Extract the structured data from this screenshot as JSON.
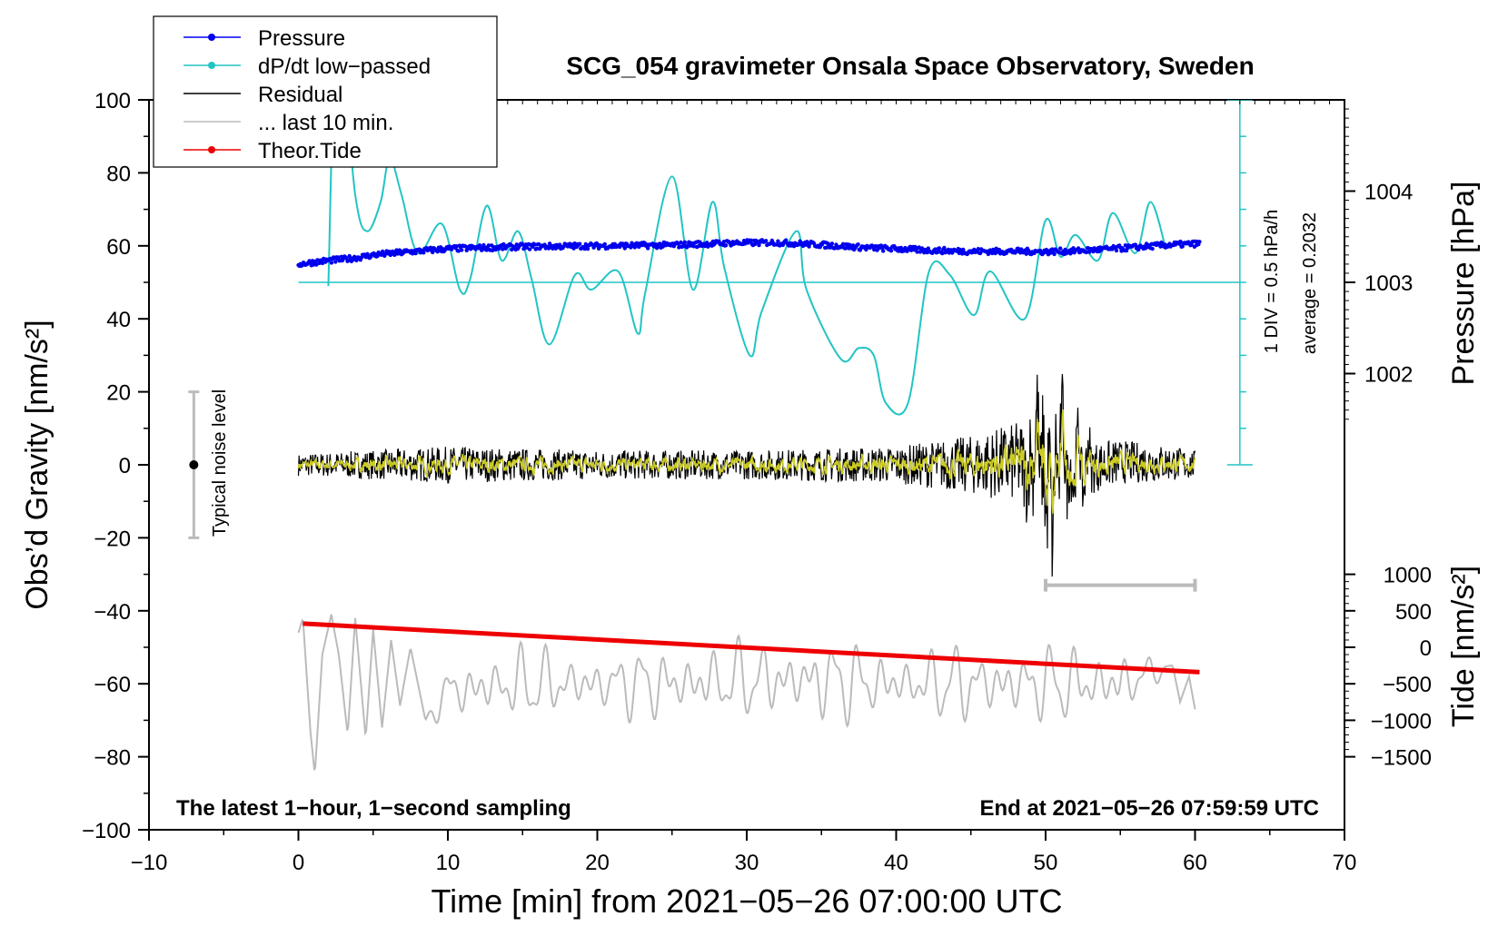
{
  "chart_data": {
    "type": "line",
    "title": "SCG_054 gravimeter Onsala Space Observatory, Sweden",
    "xlabel": "Time [min] from 2021−05−26 07:00:00 UTC",
    "ylabel_left": "Obs’d Gravity [nm/s²]",
    "ylabel_right_pressure": "Pressure [hPa]",
    "ylabel_right_tide": "Tide [nm/s²]",
    "xlim": [
      -10,
      70
    ],
    "ylim": [
      -100,
      100
    ],
    "x_ticks": [
      -10,
      0,
      10,
      20,
      30,
      40,
      50,
      60,
      70
    ],
    "x_tick_labels": [
      "−10",
      "0",
      "10",
      "20",
      "30",
      "40",
      "50",
      "60",
      "70"
    ],
    "y_ticks": [
      -100,
      -80,
      -60,
      -40,
      -20,
      0,
      20,
      40,
      60,
      80,
      100
    ],
    "y_tick_labels": [
      "−100",
      "−80",
      "−60",
      "−40",
      "−20",
      "0",
      "20",
      "40",
      "60",
      "80",
      "100"
    ],
    "pressure_axis": {
      "ticks": [
        1002,
        1003,
        1004
      ],
      "tick_labels": [
        "1002",
        "1003",
        "1004"
      ],
      "gravity_per_hpa": 25,
      "zero_gravity": 50,
      "zero_hpa": 1003
    },
    "tide_axis": {
      "ticks": [
        -1500,
        -1000,
        -500,
        0,
        500,
        1000
      ],
      "tick_labels": [
        "−1500",
        "−1000",
        "−500",
        "0",
        "500",
        "1000"
      ],
      "gravity_at_zero": -50,
      "gravity_per_unit": 0.02
    },
    "legend": {
      "position": "top-left",
      "entries": [
        {
          "label": "Pressure",
          "color": "#0000ee",
          "marker": true
        },
        {
          "label": "dP/dt low−passed",
          "color": "#22c4c4",
          "marker": true
        },
        {
          "label": "Residual",
          "color": "#000000",
          "marker": false
        },
        {
          "label": "... last 10 min.",
          "color": "#bbbbbb",
          "marker": false
        },
        {
          "label": "Theor.Tide",
          "color": "#ee0000",
          "marker": true
        }
      ]
    },
    "annotations": {
      "bottom_left": "The latest 1−hour, 1−second sampling",
      "bottom_right": "End at 2021−05−26 07:59:59 UTC",
      "noise": "Typical noise level",
      "scale": "1 DIV = 0.5 hPa/h",
      "average": "average = 0.2032"
    },
    "noise_bar": {
      "x": -7,
      "y_low": -20,
      "y_high": 20,
      "y_mid": 0
    },
    "last10_bar": {
      "x_start": 50,
      "x_end": 60,
      "y": -33
    },
    "dpdt_scale_bar": {
      "x": 63,
      "y_low": 0,
      "y_high": 100,
      "divisions": 10,
      "average_line_y": 50
    },
    "series": [
      {
        "name": "Pressure",
        "color": "#0000ee",
        "x": [
          0,
          1,
          2,
          3,
          4,
          5,
          7,
          10,
          15,
          20,
          25,
          29,
          30,
          32,
          35,
          38,
          40,
          42,
          45,
          48,
          50,
          52,
          55,
          58,
          60.3
        ],
        "y": [
          55,
          55.5,
          56,
          56.3,
          56.8,
          57.5,
          58.2,
          59.2,
          59.8,
          60,
          60.2,
          60.8,
          60.8,
          60.9,
          60.3,
          59.5,
          59.2,
          58.8,
          58.5,
          58.5,
          58.4,
          58.6,
          59.3,
          60.2,
          60.6
        ]
      },
      {
        "name": "dP/dt low−passed",
        "color": "#22c4c4",
        "x": [
          2,
          2.6,
          3.8,
          4.6,
          5.5,
          6.1,
          6.9,
          8,
          9.6,
          10.8,
          11.5,
          12.6,
          13.6,
          14.7,
          15.6,
          16.8,
          18.5,
          19.6,
          21.4,
          22.7,
          23.2,
          25,
          26.4,
          27.7,
          28.5,
          30.2,
          31,
          33.3,
          34,
          36.3,
          37.5,
          38.5,
          39.3,
          40.8,
          42.2,
          43.6,
          45.2,
          46.3,
          48.6,
          50,
          51,
          52,
          53.5,
          54.5,
          56,
          57,
          58
        ],
        "y": [
          49,
          120,
          74,
          64,
          72,
          84,
          74,
          58,
          66,
          48,
          51,
          71,
          56,
          64,
          51,
          33,
          52,
          48,
          53,
          36,
          47,
          79,
          48,
          72,
          54,
          30,
          42,
          64,
          48,
          29,
          32,
          30,
          17,
          17,
          53,
          52,
          41,
          53,
          40,
          67,
          57,
          63,
          56,
          69,
          58,
          72,
          60
        ]
      },
      {
        "name": "Residual",
        "color": "#000000",
        "x": [
          0,
          10,
          20,
          30,
          40,
          45,
          49,
          49.5,
          50,
          50.5,
          51,
          52,
          55,
          58,
          60
        ],
        "y": [
          0,
          0,
          0,
          0,
          0,
          0,
          5,
          -20,
          20,
          -25,
          18,
          -10,
          5,
          3,
          0
        ],
        "amplitude": [
          3,
          5,
          4,
          4,
          5,
          8,
          12,
          15,
          18,
          15,
          12,
          8,
          6,
          5,
          4
        ]
      },
      {
        "name": "... last 10 min.",
        "color": "#bbbbbb",
        "x": [
          0,
          0.3,
          0.8,
          1.1,
          1.6,
          2.2,
          2.7,
          3.3,
          3.8,
          4.5,
          5,
          5.6,
          6.2,
          6.8,
          7.5,
          8.5,
          10,
          15,
          20,
          25,
          30,
          35,
          40,
          45,
          50,
          55,
          58.5,
          59,
          59.6,
          60
        ],
        "y": [
          -46,
          -42,
          -73,
          -85,
          -52,
          -41,
          -52,
          -74,
          -42,
          -75,
          -45,
          -72,
          -48,
          -66,
          -50,
          -70,
          -62,
          -60,
          -60,
          -60,
          -59,
          -59,
          -60,
          -60,
          -60,
          -60,
          -55,
          -65,
          -58,
          -67
        ],
        "amplitude": [
          0,
          0,
          0,
          0,
          0,
          0,
          0,
          0,
          0,
          0,
          0,
          0,
          0,
          0,
          0,
          0,
          7,
          9,
          7,
          9,
          9,
          10,
          8,
          9,
          9,
          9,
          0,
          0,
          0,
          0
        ]
      },
      {
        "name": "Theor.Tide",
        "color": "#ee0000",
        "x": [
          0.3,
          60.3
        ],
        "y": [
          -43.5,
          -56.8
        ]
      }
    ]
  }
}
